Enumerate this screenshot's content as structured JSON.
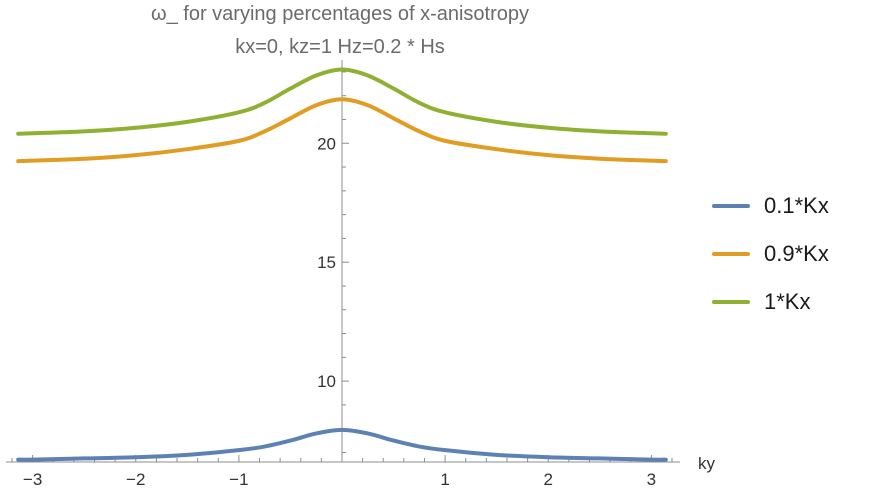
{
  "chart_data": {
    "type": "line",
    "title": "ω_ for varying percentages of x-anisotropy",
    "subtitle": "kx=0, kz=1 Hz=0.2 * Hs",
    "xlabel": "ky",
    "ylabel": "",
    "xlim": [
      -3.2,
      3.2
    ],
    "ylim": [
      6.6,
      23.5
    ],
    "x_ticks": [
      -3,
      -2,
      -1,
      1,
      2,
      3
    ],
    "x_tick_labels": [
      "−3",
      "−2",
      "−1",
      "1",
      "2",
      "3"
    ],
    "y_ticks": [
      10,
      15,
      20
    ],
    "y_tick_labels": [
      "10",
      "15",
      "20"
    ],
    "grid": false,
    "legend_position": "right",
    "x": [
      -3.14,
      -3.0,
      -2.5,
      -2.0,
      -1.5,
      -1.0,
      -0.75,
      -0.5,
      -0.25,
      0.0,
      0.25,
      0.5,
      0.75,
      1.0,
      1.5,
      2.0,
      2.5,
      3.0,
      3.14
    ],
    "series": [
      {
        "name": "0.1*Kx",
        "color": "#5e81b5",
        "values": [
          6.7,
          6.7,
          6.75,
          6.8,
          6.9,
          7.1,
          7.25,
          7.5,
          7.8,
          7.95,
          7.8,
          7.5,
          7.25,
          7.1,
          6.9,
          6.8,
          6.75,
          6.7,
          6.7
        ]
      },
      {
        "name": "0.9*Kx",
        "color": "#e19c24",
        "values": [
          19.25,
          19.27,
          19.35,
          19.5,
          19.75,
          20.1,
          20.5,
          21.05,
          21.6,
          21.85,
          21.6,
          21.05,
          20.5,
          20.1,
          19.75,
          19.5,
          19.35,
          19.27,
          19.25
        ]
      },
      {
        "name": "1*Kx",
        "color": "#8fb032",
        "values": [
          20.4,
          20.42,
          20.5,
          20.65,
          20.9,
          21.3,
          21.7,
          22.3,
          22.85,
          23.1,
          22.85,
          22.3,
          21.7,
          21.3,
          20.9,
          20.65,
          20.5,
          20.42,
          20.4
        ]
      }
    ]
  }
}
